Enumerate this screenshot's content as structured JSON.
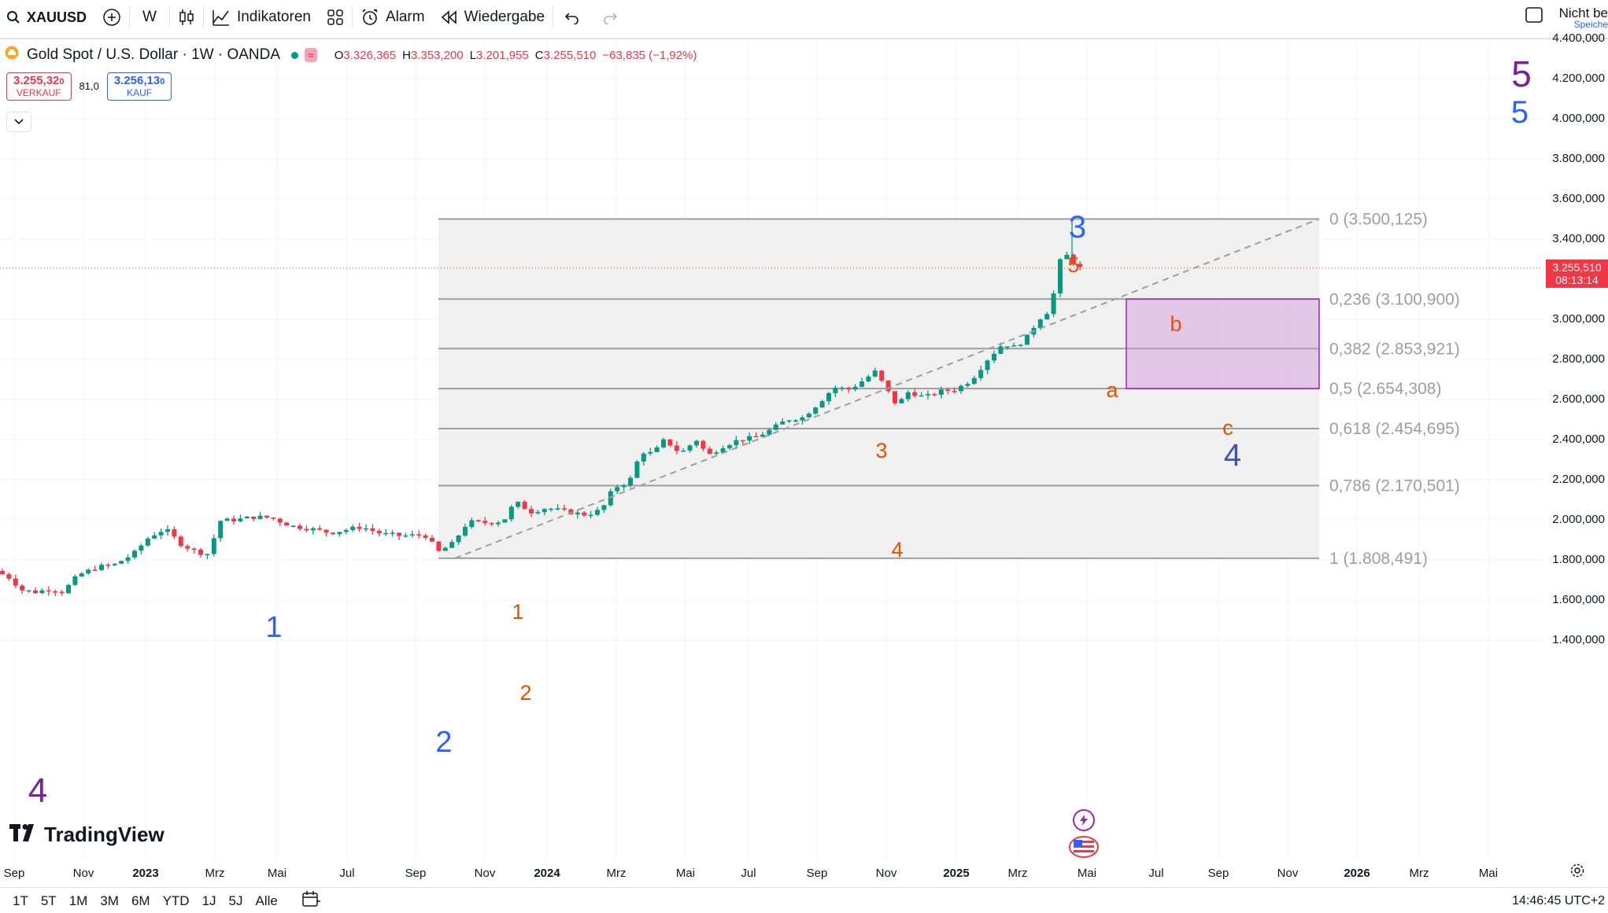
{
  "toolbar": {
    "symbol": "XAUUSD",
    "interval": "W",
    "indicators_label": "Indikatoren",
    "alert_label": "Alarm",
    "replay_label": "Wiedergabe",
    "save_status": "Nicht be",
    "save_sub": "Speiche"
  },
  "legend": {
    "title": "Gold Spot / U.S. Dollar · 1W · OANDA",
    "open": "3.326,365",
    "high": "3.353,200",
    "low": "3.201,955",
    "close": "3.255,510",
    "change": "−63,835 (−1,92%)",
    "o_label": "O",
    "h_label": "H",
    "l_label": "L",
    "c_label": "C"
  },
  "trade": {
    "sell_price": "3.255,32",
    "sell_price_small": "0",
    "sell_label": "VERKAUF",
    "spread": "81,0",
    "buy_price": "3.256,13",
    "buy_price_small": "0",
    "buy_label": "KAUF"
  },
  "price_axis": {
    "ticks": [
      "4.400,000",
      "4.200,000",
      "4.000,000",
      "3.800,000",
      "3.600,000",
      "3.400,000",
      "3.000,000",
      "2.800,000",
      "2.600,000",
      "2.400,000",
      "2.200,000",
      "2.000,000",
      "1.800,000",
      "1.600,000",
      "1.400,000"
    ],
    "tick_values": [
      4400,
      4200,
      4000,
      3800,
      3600,
      3400,
      3000,
      2800,
      2600,
      2400,
      2200,
      2000,
      1800,
      1600,
      1400
    ],
    "current_price": "3.255,510",
    "countdown": "08:13:14"
  },
  "time_axis": {
    "labels": [
      "Sep",
      "Nov",
      "2023",
      "Mrz",
      "Mai",
      "Jul",
      "Sep",
      "Nov",
      "2024",
      "Mrz",
      "Mai",
      "Jul",
      "Sep",
      "Nov",
      "2025",
      "Mrz",
      "Mai",
      "Jul",
      "Sep",
      "Nov",
      "2026",
      "Mrz",
      "Mai"
    ],
    "bold": [
      "2023",
      "2024",
      "2025",
      "2026"
    ]
  },
  "fib": {
    "levels": [
      {
        "label": "0 (3.500,125)",
        "value": 3500.125
      },
      {
        "label": "0,236 (3.100,900)",
        "value": 3100.9
      },
      {
        "label": "0,382 (2.853,921)",
        "value": 2853.921
      },
      {
        "label": "0,5 (2.654,308)",
        "value": 2654.308
      },
      {
        "label": "0,618 (2.454,695)",
        "value": 2454.695
      },
      {
        "label": "0,786 (2.170,501)",
        "value": 2170.501
      },
      {
        "label": "1 (1.808,491)",
        "value": 1808.491
      }
    ]
  },
  "waves": {
    "purple": [
      "5",
      "4"
    ],
    "blue": [
      "5",
      "3",
      "1",
      "2",
      "4"
    ],
    "orange": [
      "5",
      "b",
      "a",
      "c",
      "3",
      "4",
      "1",
      "2"
    ]
  },
  "bottom": {
    "ranges": [
      "1T",
      "5T",
      "1M",
      "3M",
      "6M",
      "YTD",
      "1J",
      "5J",
      "Alle"
    ],
    "clock": "14:46:45 UTC+2"
  },
  "branding": {
    "logo_text": "TradingView"
  },
  "colors": {
    "up": "#089981",
    "down": "#f23645",
    "wave_blue": "#2962ff",
    "wave_orange": "#e65100",
    "wave_purple": "#7b1fa2",
    "fib_line": "#9e9e9e",
    "target_box": "#ce93d8"
  },
  "icons": [
    "search-icon",
    "plus-circle-icon",
    "candles-icon",
    "indicators-icon",
    "layout-grid-icon",
    "alarm-icon",
    "replay-icon",
    "undo-icon",
    "redo-icon",
    "fullscreen-icon",
    "calendar-icon",
    "settings-icon"
  ]
}
